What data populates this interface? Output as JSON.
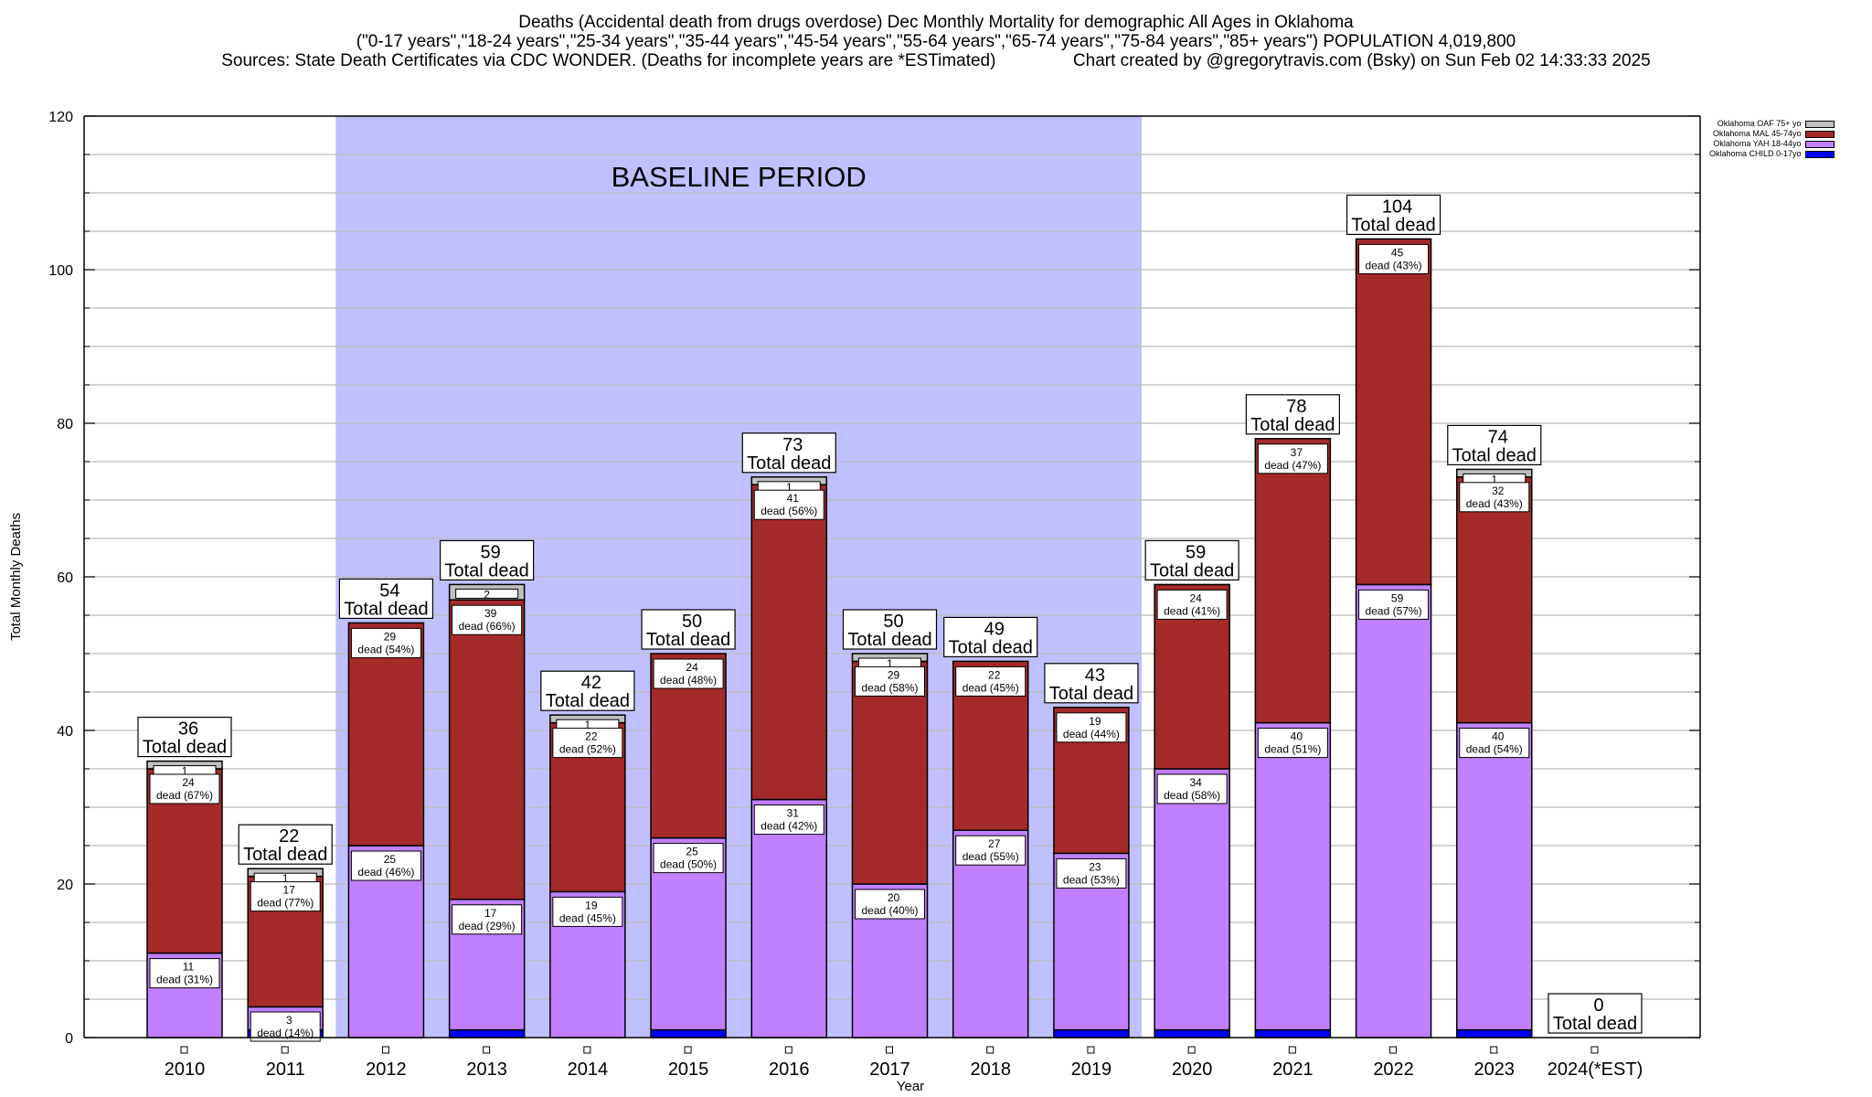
{
  "title": {
    "line1": "Deaths (Accidental death from drugs overdose) Dec Monthly Mortality for demographic All Ages in Oklahoma",
    "line2": "(\"0-17 years\",\"18-24 years\",\"25-34 years\",\"35-44 years\",\"45-54 years\",\"55-64 years\",\"65-74 years\",\"75-84 years\",\"85+ years\") POPULATION 4,019,800",
    "line3": "Sources: State Death Certificates via CDC WONDER. (Deaths for incomplete years are *ESTimated)                Chart created by @gregorytravis.com (Bsky) on Sun Feb 02 14:33:33 2025"
  },
  "legend": [
    {
      "label": "Oklahoma OAF 75+ yo",
      "color": "#c0c0c0"
    },
    {
      "label": "Oklahoma MAL 45-74yo",
      "color": "#a52a2a"
    },
    {
      "label": "Oklahoma YAH 18-44yo",
      "color": "#c080ff"
    },
    {
      "label": "Oklahoma CHILD 0-17yo",
      "color": "#0000ff"
    }
  ],
  "chart_data": {
    "type": "bar",
    "stacked": true,
    "title": "Deaths (Accidental death from drugs overdose) Dec Monthly Mortality for demographic All Ages in Oklahoma",
    "xlabel": "Year",
    "ylabel": "Total Monthly Deaths",
    "ylim": [
      0,
      120
    ],
    "yticks": [
      0,
      20,
      40,
      60,
      80,
      100,
      120
    ],
    "grid": true,
    "legend_position": "top-right",
    "categories": [
      "2010",
      "2011",
      "2012",
      "2013",
      "2014",
      "2015",
      "2016",
      "2017",
      "2018",
      "2019",
      "2020",
      "2021",
      "2022",
      "2023",
      "2024(*EST)"
    ],
    "series": [
      {
        "name": "Oklahoma CHILD 0-17yo",
        "color": "#0000ff",
        "values": [
          0,
          1,
          0,
          1,
          0,
          1,
          0,
          0,
          0,
          1,
          1,
          1,
          0,
          1,
          0
        ]
      },
      {
        "name": "Oklahoma YAH 18-44yo",
        "color": "#c080ff",
        "values": [
          11,
          3,
          25,
          17,
          19,
          25,
          31,
          20,
          27,
          23,
          34,
          40,
          59,
          40,
          0
        ]
      },
      {
        "name": "Oklahoma MAL 45-74yo",
        "color": "#a52a2a",
        "values": [
          24,
          17,
          29,
          39,
          22,
          24,
          41,
          29,
          22,
          19,
          24,
          37,
          45,
          32,
          0
        ]
      },
      {
        "name": "Oklahoma OAF 75+ yo",
        "color": "#c0c0c0",
        "values": [
          1,
          1,
          0,
          2,
          1,
          0,
          1,
          1,
          0,
          0,
          0,
          0,
          0,
          1,
          0
        ]
      }
    ],
    "totals": [
      36,
      22,
      54,
      59,
      42,
      50,
      73,
      50,
      49,
      43,
      59,
      78,
      104,
      74,
      0
    ],
    "total_label_suffix": "Total dead",
    "segment_labels": {
      "YAH": [
        "11\ndead (31%)",
        "3\ndead (14%)",
        "25\ndead (46%)",
        "17\ndead (29%)",
        "19\ndead (45%)",
        "25\ndead (50%)",
        "31\ndead (42%)",
        "20\ndead (40%)",
        "27\ndead (55%)",
        "23\ndead (53%)",
        "34\ndead (58%)",
        "40\ndead (51%)",
        "59\ndead (57%)",
        "40\ndead (54%)",
        ""
      ],
      "MAL": [
        "24\ndead (67%)",
        "17\ndead (77%)",
        "29\ndead (54%)",
        "39\ndead (66%)",
        "22\ndead (52%)",
        "24\ndead (48%)",
        "41\ndead (56%)",
        "29\ndead (58%)",
        "22\ndead (45%)",
        "19\ndead (44%)",
        "24\ndead (41%)",
        "37\ndead (47%)",
        "45\ndead (43%)",
        "32\ndead (43%)",
        ""
      ],
      "OAF": [
        "1",
        "1",
        "",
        "2",
        "1",
        "",
        "1",
        "1",
        "",
        "",
        "",
        "",
        "",
        "1",
        ""
      ]
    },
    "annotations": [
      {
        "text": "BASELINE PERIOD",
        "x_range": [
          "2012",
          "2019"
        ],
        "color": "#c0c0ff"
      }
    ]
  }
}
